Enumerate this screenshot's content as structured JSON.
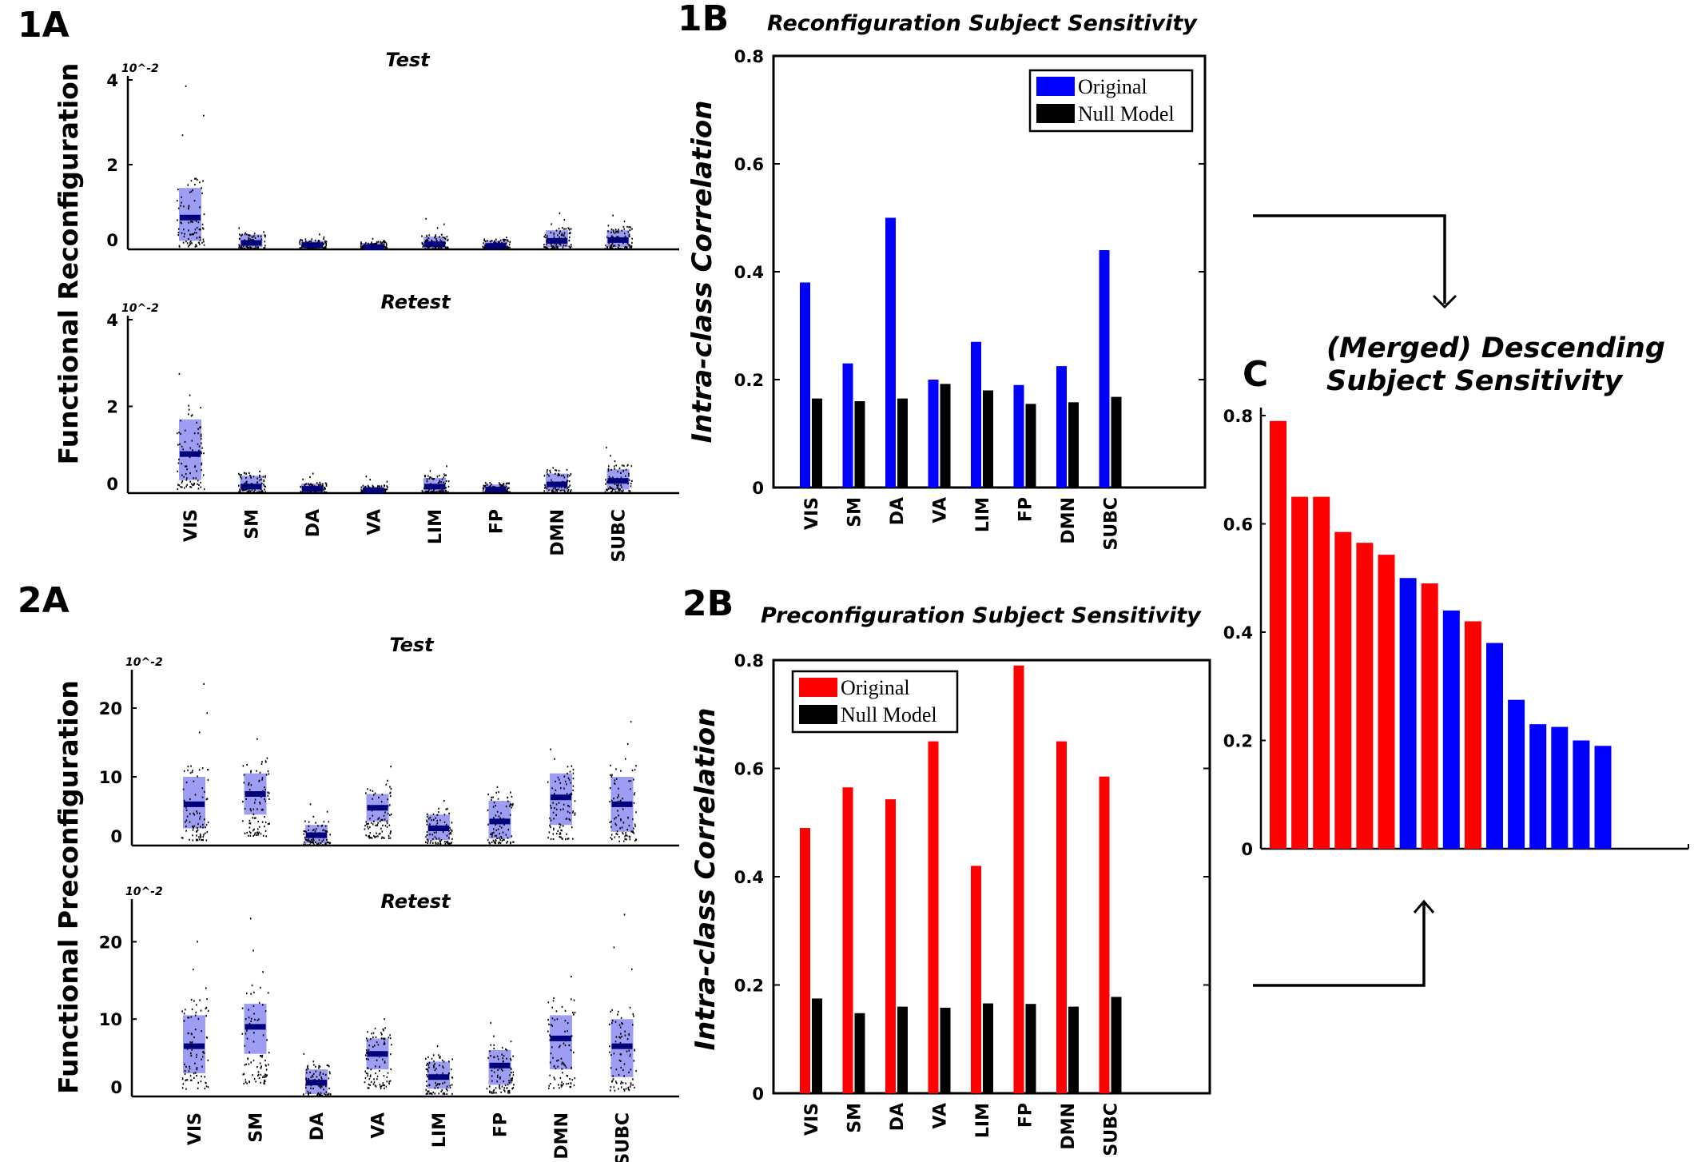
{
  "labels": {
    "panel_1a": "1A",
    "panel_1b": "1B",
    "panel_2a": "2A",
    "panel_2b": "2B",
    "panel_c": "C"
  },
  "colors": {
    "original_1b": "#0000ff",
    "original_2b": "#ff0000",
    "null_model": "#000000",
    "box_fill": "#8c8cf2",
    "median": "#00007a"
  },
  "chart_data": [
    {
      "id": "1A-test",
      "type": "scatter",
      "title": "Test",
      "ylabel": "Functional Reconfiguration",
      "exponent_label": "10^-2",
      "yticks": [
        "4",
        "2",
        "0"
      ],
      "ylim": [
        0,
        4
      ],
      "categories": [
        "VIS",
        "SM",
        "DA",
        "VA",
        "LIM",
        "FP",
        "DMN",
        "SUBC"
      ],
      "medians": [
        0.75,
        0.15,
        0.1,
        0.05,
        0.12,
        0.08,
        0.2,
        0.22
      ],
      "box_low": [
        0.2,
        0.05,
        0.02,
        0.02,
        0.03,
        0.02,
        0.05,
        0.05
      ],
      "box_high": [
        1.45,
        0.35,
        0.2,
        0.15,
        0.3,
        0.2,
        0.45,
        0.45
      ],
      "max_points": [
        3.85,
        0.5,
        0.35,
        0.25,
        0.72,
        0.28,
        0.85,
        0.8
      ]
    },
    {
      "id": "1A-retest",
      "type": "scatter",
      "title": "Retest",
      "ylabel": "Functional Reconfiguration",
      "exponent_label": "10^-2",
      "yticks": [
        "4",
        "2",
        "0"
      ],
      "ylim": [
        0,
        4
      ],
      "categories": [
        "VIS",
        "SM",
        "DA",
        "VA",
        "LIM",
        "FP",
        "DMN",
        "SUBC"
      ],
      "medians": [
        0.9,
        0.15,
        0.1,
        0.06,
        0.15,
        0.08,
        0.2,
        0.28
      ],
      "box_low": [
        0.3,
        0.05,
        0.02,
        0.02,
        0.03,
        0.02,
        0.05,
        0.08
      ],
      "box_high": [
        1.7,
        0.4,
        0.22,
        0.15,
        0.35,
        0.2,
        0.45,
        0.55
      ],
      "max_points": [
        2.75,
        0.5,
        0.45,
        0.38,
        0.62,
        0.2,
        0.58,
        1.05
      ]
    },
    {
      "id": "2A-test",
      "type": "scatter",
      "title": "Test",
      "ylabel": "Functional Preconfiguration",
      "exponent_label": "10^-2",
      "yticks": [
        "20",
        "10",
        "0"
      ],
      "ylim": [
        0,
        25
      ],
      "categories": [
        "VIS",
        "SM",
        "DA",
        "VA",
        "LIM",
        "FP",
        "DMN",
        "SUBC"
      ],
      "medians": [
        6,
        7.5,
        1.5,
        5.5,
        2.5,
        3.5,
        7,
        6
      ],
      "box_low": [
        2.5,
        4.5,
        0.3,
        3.5,
        0.8,
        1,
        3,
        2
      ],
      "box_high": [
        10,
        10.5,
        3,
        7.5,
        4.5,
        6.5,
        10.5,
        10
      ],
      "max_points": [
        23.5,
        15.5,
        6,
        11.5,
        6.5,
        8.5,
        14,
        18
      ]
    },
    {
      "id": "2A-retest",
      "type": "scatter",
      "title": "Retest",
      "ylabel": "Functional Preconfiguration",
      "exponent_label": "10^-2",
      "yticks": [
        "20",
        "10",
        "0"
      ],
      "ylim": [
        0,
        25
      ],
      "categories": [
        "VIS",
        "SM",
        "DA",
        "VA",
        "LIM",
        "FP",
        "DMN",
        "SUBC"
      ],
      "medians": [
        6.5,
        9,
        1.8,
        5.5,
        2.5,
        4,
        7.5,
        6.5
      ],
      "box_low": [
        3,
        5.5,
        0.3,
        3.5,
        1,
        1.5,
        3.5,
        2.5
      ],
      "box_high": [
        10.5,
        12,
        3.5,
        7.5,
        4.5,
        6,
        10.5,
        10
      ],
      "max_points": [
        20,
        23,
        5.5,
        10,
        6.5,
        9.5,
        15.5,
        23.5
      ]
    },
    {
      "id": "1B",
      "type": "bar",
      "title": "Reconfiguration Subject Sensitivity",
      "ylabel": "Intra-class Correlation",
      "ylim": [
        0,
        0.8
      ],
      "yticks": [
        "0.8",
        "0.6",
        "0.4",
        "0.2",
        "0"
      ],
      "categories": [
        "VIS",
        "SM",
        "DA",
        "VA",
        "LIM",
        "FP",
        "DMN",
        "SUBC"
      ],
      "series": [
        {
          "name": "Original",
          "values": [
            0.38,
            0.23,
            0.5,
            0.2,
            0.27,
            0.19,
            0.225,
            0.44
          ]
        },
        {
          "name": "Null Model",
          "values": [
            0.165,
            0.16,
            0.165,
            0.192,
            0.18,
            0.155,
            0.158,
            0.168
          ]
        }
      ],
      "legend": "top-right"
    },
    {
      "id": "2B",
      "type": "bar",
      "title": "Preconfiguration Subject Sensitivity",
      "ylabel": "Intra-class Correlation",
      "ylim": [
        0,
        0.8
      ],
      "yticks": [
        "0.8",
        "0.6",
        "0.4",
        "0.2",
        "0"
      ],
      "categories": [
        "VIS",
        "SM",
        "DA",
        "VA",
        "LIM",
        "FP",
        "DMN",
        "SUBC"
      ],
      "series": [
        {
          "name": "Original",
          "values": [
            0.49,
            0.565,
            0.543,
            0.65,
            0.42,
            0.79,
            0.65,
            0.585
          ]
        },
        {
          "name": "Null Model",
          "values": [
            0.175,
            0.148,
            0.16,
            0.158,
            0.166,
            0.165,
            0.16,
            0.178
          ]
        }
      ],
      "legend": "top-left"
    },
    {
      "id": "C",
      "type": "bar",
      "title_line1": "(Merged) Descending",
      "title_line2": "Subject Sensitivity",
      "ylim": [
        0,
        0.8
      ],
      "yticks": [
        "0.8",
        "0.6",
        "0.4",
        "0.2",
        "0"
      ],
      "values": [
        0.79,
        0.65,
        0.65,
        0.585,
        0.565,
        0.543,
        0.5,
        0.49,
        0.44,
        0.42,
        0.38,
        0.275,
        0.23,
        0.225,
        0.2,
        0.19
      ],
      "sources": [
        "pre",
        "pre",
        "pre",
        "pre",
        "pre",
        "pre",
        "re",
        "pre",
        "re",
        "pre",
        "re",
        "re",
        "re",
        "re",
        "re",
        "re"
      ]
    }
  ]
}
